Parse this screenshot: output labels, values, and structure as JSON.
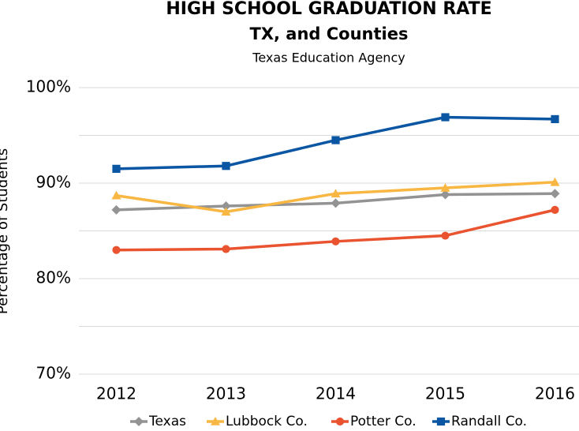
{
  "chart_data": {
    "type": "line",
    "title": "HIGH SCHOOL GRADUATION RATE",
    "title_line2": "TX, and Counties",
    "subtitle": "Texas Education Agency",
    "y_label": "Percentage of Students",
    "categories": [
      "2012",
      "2013",
      "2014",
      "2015",
      "2016"
    ],
    "series": [
      {
        "name": "Texas",
        "color": "#939393",
        "marker": "diamond",
        "values": [
          87.2,
          87.6,
          87.9,
          88.8,
          88.9
        ]
      },
      {
        "name": "Lubbock Co.",
        "color": "#f8b642",
        "marker": "triangle",
        "values": [
          88.7,
          87.0,
          88.9,
          89.5,
          90.1
        ]
      },
      {
        "name": "Potter Co.",
        "color": "#e9532f",
        "marker": "circle",
        "values": [
          83.0,
          83.1,
          83.9,
          84.5,
          87.2
        ]
      },
      {
        "name": "Randall Co.",
        "color": "#0a56a3",
        "marker": "square",
        "values": [
          91.5,
          91.8,
          94.5,
          96.9,
          96.7
        ]
      }
    ],
    "ylim": [
      70,
      100
    ],
    "yticks": [
      {
        "value": 70,
        "label": "70%"
      },
      {
        "value": 80,
        "label": "80%"
      },
      {
        "value": 90,
        "label": "90%"
      },
      {
        "value": 100,
        "label": "100%"
      }
    ],
    "minor_yticks": [
      75,
      85,
      95
    ],
    "grid": true,
    "legend": "bottom"
  }
}
